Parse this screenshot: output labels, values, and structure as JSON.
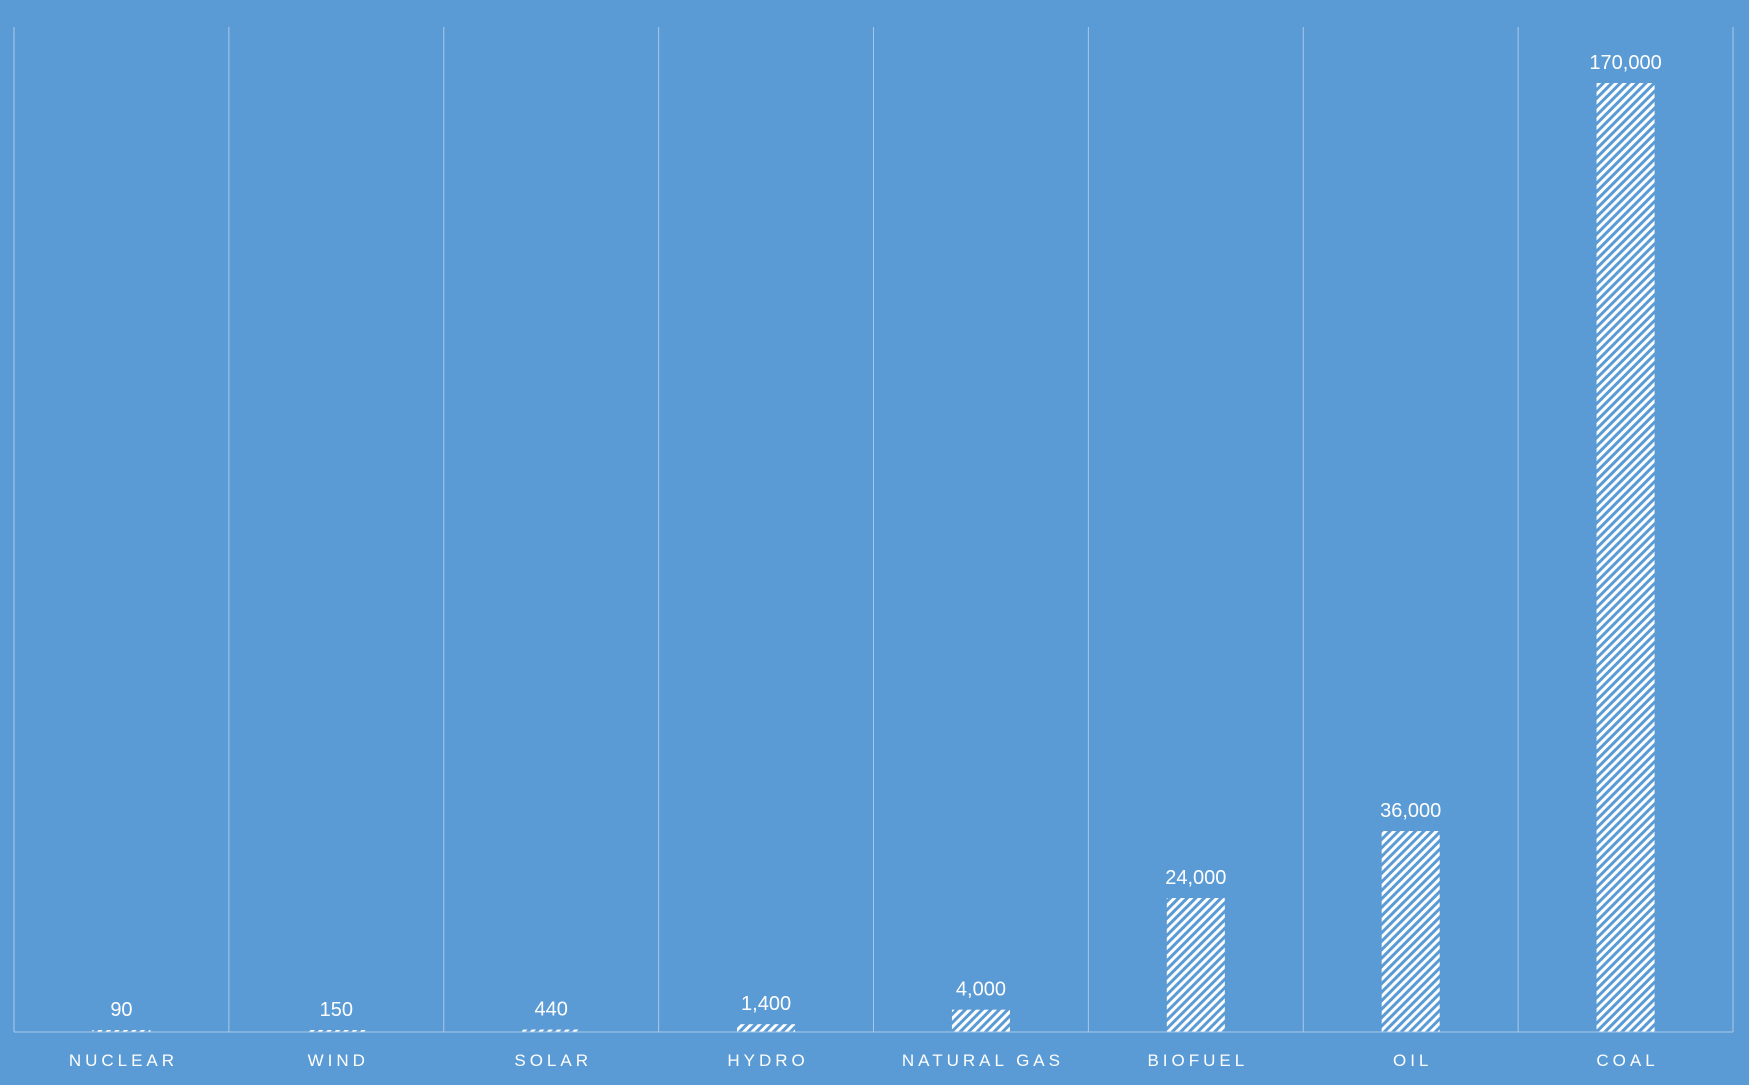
{
  "chart_data": {
    "type": "bar",
    "categories": [
      "NUCLEAR",
      "WIND",
      "SOLAR",
      "HYDRO",
      "NATURAL GAS",
      "BIOFUEL",
      "OIL",
      "COAL"
    ],
    "values": [
      90,
      150,
      440,
      1400,
      4000,
      24000,
      36000,
      170000
    ],
    "data_labels": [
      "90",
      "150",
      "440",
      "1,400",
      "4,000",
      "24,000",
      "36,000",
      "170,000"
    ],
    "title": "",
    "xlabel": "",
    "ylabel": "",
    "ylim": [
      0,
      180000
    ],
    "y_scale": "linear",
    "grid": "vertical category separators",
    "legend": "none",
    "bar_pattern": "diagonal-hatch",
    "colors": {
      "background": "#5b9bd5",
      "bar": "#ffffff",
      "gridline": "#a9c8e8",
      "text": "#ffffff"
    }
  }
}
